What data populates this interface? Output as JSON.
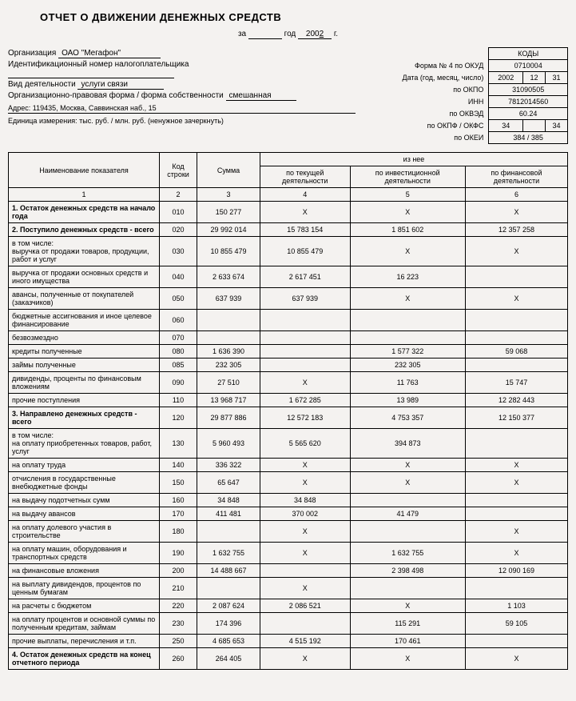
{
  "title": "ОТЧЕТ О ДВИЖЕНИИ ДЕНЕЖНЫХ СРЕДСТВ",
  "period": {
    "za": "за",
    "god": "год",
    "year_prefix": "200",
    "year_suffix": "2",
    "g": "г."
  },
  "codes_header": "КОДЫ",
  "meta_labels": {
    "form": "Форма № 4 по ОКУД",
    "date": "Дата (год, месяц, число)",
    "okpo": "по ОКПО",
    "inn": "ИНН",
    "okved": "по ОКВЭД",
    "okpf": "по ОКПФ / ОКФС",
    "okei": "по ОКЕИ"
  },
  "codes": {
    "okud": "0710004",
    "date_y": "2002",
    "date_m": "12",
    "date_d": "31",
    "okpo": "31090505",
    "inn": "7812014560",
    "okved": "60.24",
    "okpf1": "34",
    "okpf2": "34",
    "okei": "384 / 385"
  },
  "left": {
    "org_label": "Организация",
    "org_value": "ОАО \"Мегафон\"",
    "taxid_label": "Идентификационный номер налогоплательщика",
    "activity_label": "Вид деятельности",
    "activity_value": "услуги связи",
    "legal_label": "Организационно-правовая форма / форма собственности",
    "legal_value": "смешанная",
    "addr": "Адрес: 119435, Москва, Саввинская наб., 15",
    "unit": "Единица измерения: тыс. руб. / млн. руб. (ненужное зачеркнуть)"
  },
  "columns": {
    "name": "Наименование показателя",
    "code": "Код строки",
    "sum": "Сумма",
    "of": "из нее",
    "current": "по текущей деятельности",
    "invest": "по инвестиционной деятельности",
    "finance": "по финансовой деятельности",
    "n1": "1",
    "n2": "2",
    "n3": "3",
    "n4": "4",
    "n5": "5",
    "n6": "6"
  },
  "rows": [
    {
      "name": "1. Остаток денежных средств на начало года",
      "bold": true,
      "code": "010",
      "sum": "150 277",
      "c4": "X",
      "c5": "X",
      "c6": "X"
    },
    {
      "name": "2. Поступило денежных средств - всего",
      "bold": true,
      "code": "020",
      "sum": "29 992 014",
      "c4": "15 783 154",
      "c5": "1 851 602",
      "c6": "12 357 258"
    },
    {
      "name": "в том числе:\nвыручка от продажи товаров, продукции, работ и услуг",
      "indent": true,
      "code": "030",
      "sum": "10 855 479",
      "c4": "10 855 479",
      "c5": "X",
      "c6": "X"
    },
    {
      "name": "выручка от продажи основных средств и иного имущества",
      "indent": true,
      "code": "040",
      "sum": "2 633 674",
      "c4": "2 617 451",
      "c5": "16 223",
      "c6": ""
    },
    {
      "name": "авансы, полученные от покупателей (заказчиков)",
      "indent": true,
      "code": "050",
      "sum": "637 939",
      "c4": "637 939",
      "c5": "X",
      "c6": "X"
    },
    {
      "name": "бюджетные ассигнования и иное целевое финансирование",
      "indent": true,
      "code": "060",
      "sum": "",
      "c4": "",
      "c5": "",
      "c6": ""
    },
    {
      "name": "безвозмездно",
      "indent": true,
      "code": "070",
      "sum": "",
      "c4": "",
      "c5": "",
      "c6": ""
    },
    {
      "name": "кредиты полученные",
      "indent": true,
      "code": "080",
      "sum": "1 636 390",
      "c4": "",
      "c5": "1 577 322",
      "c6": "59 068"
    },
    {
      "name": "займы полученные",
      "indent": true,
      "code": "085",
      "sum": "232 305",
      "c4": "",
      "c5": "232 305",
      "c6": ""
    },
    {
      "name": "дивиденды, проценты по финансовым вложениям",
      "indent": true,
      "code": "090",
      "sum": "27 510",
      "c4": "X",
      "c5": "11 763",
      "c6": "15 747"
    },
    {
      "name": "прочие поступления",
      "indent": true,
      "code": "110",
      "sum": "13 968 717",
      "c4": "1 672 285",
      "c5": "13 989",
      "c6": "12 282 443"
    },
    {
      "name": "3. Направлено денежных средств - всего",
      "bold": true,
      "code": "120",
      "sum": "29 877 886",
      "c4": "12 572 183",
      "c5": "4 753 357",
      "c6": "12 150 377"
    },
    {
      "name": "в том числе:\nна оплату приобретенных товаров, работ, услуг",
      "indent": true,
      "code": "130",
      "sum": "5 960 493",
      "c4": "5 565 620",
      "c5": "394 873",
      "c6": ""
    },
    {
      "name": "на оплату труда",
      "indent": true,
      "code": "140",
      "sum": "336 322",
      "c4": "X",
      "c5": "X",
      "c6": "X"
    },
    {
      "name": "отчисления в государственные внебюджетные фонды",
      "indent": true,
      "code": "150",
      "sum": "65 647",
      "c4": "X",
      "c5": "X",
      "c6": "X"
    },
    {
      "name": "на выдачу подотчетных сумм",
      "indent": true,
      "code": "160",
      "sum": "34 848",
      "c4": "34 848",
      "c5": "",
      "c6": ""
    },
    {
      "name": "на выдачу авансов",
      "indent": true,
      "code": "170",
      "sum": "411 481",
      "c4": "370 002",
      "c5": "41 479",
      "c6": ""
    },
    {
      "name": "на оплату долевого участия в строительстве",
      "indent": true,
      "code": "180",
      "sum": "",
      "c4": "X",
      "c5": "",
      "c6": "X"
    },
    {
      "name": "на оплату машин, оборудования и транспортных средств",
      "indent": true,
      "code": "190",
      "sum": "1 632 755",
      "c4": "X",
      "c5": "1 632 755",
      "c6": "X"
    },
    {
      "name": "на финансовые вложения",
      "indent": true,
      "code": "200",
      "sum": "14 488 667",
      "c4": "",
      "c5": "2 398 498",
      "c6": "12 090 169"
    },
    {
      "name": "на выплату дивидендов, процентов по ценным бумагам",
      "indent": true,
      "code": "210",
      "sum": "",
      "c4": "X",
      "c5": "",
      "c6": ""
    },
    {
      "name": "на расчеты с бюджетом",
      "indent": true,
      "code": "220",
      "sum": "2 087 624",
      "c4": "2 086 521",
      "c5": "X",
      "c6": "1 103"
    },
    {
      "name": "на оплату процентов и основной суммы по полученным кредитам, займам",
      "indent": true,
      "code": "230",
      "sum": "174 396",
      "c4": "",
      "c5": "115 291",
      "c6": "59 105"
    },
    {
      "name": "прочие выплаты, перечисления и т.п.",
      "indent": true,
      "code": "250",
      "sum": "4 685 653",
      "c4": "4 515 192",
      "c5": "170 461",
      "c6": ""
    },
    {
      "name": "4. Остаток денежных средств на конец отчетного периода",
      "bold": true,
      "code": "260",
      "sum": "264 405",
      "c4": "X",
      "c5": "X",
      "c6": "X"
    }
  ]
}
